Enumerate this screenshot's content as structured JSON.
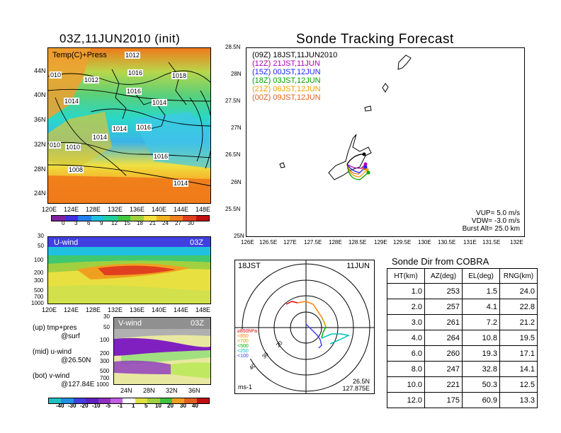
{
  "left_title": "03Z,11JUN2010 (init)",
  "main_title": "Sonde Tracking Forecast",
  "map_panel": {
    "label": "Temp(C)+Press",
    "lat_labels": [
      "44N",
      "40N",
      "36N",
      "32N",
      "28N",
      "24N"
    ],
    "lon_labels": [
      "120E",
      "124E",
      "128E",
      "132E",
      "136E",
      "140E",
      "144E",
      "148E"
    ],
    "isobar_labels": [
      "1012",
      "1016",
      "1018",
      "010",
      "1012",
      "1016",
      "1014",
      "1014",
      "1014",
      "1016",
      "1014",
      "010",
      "1010",
      "1016",
      "1008",
      "1014"
    ],
    "colorbar_ticks": [
      "0",
      "3",
      "6",
      "9",
      "12",
      "15",
      "18",
      "21",
      "24",
      "27",
      "30"
    ]
  },
  "u_panel": {
    "label": "U-wind",
    "time": "03Z",
    "pressure_labels": [
      "30",
      "50",
      "100",
      "200",
      "300",
      "500",
      "700",
      "1000"
    ],
    "lon_labels": [
      "120E",
      "124E",
      "128E",
      "132E",
      "136E",
      "140E",
      "144E",
      "148E"
    ]
  },
  "v_panel": {
    "label": "V-wind",
    "time": "03Z",
    "pressure_labels": [
      "30",
      "50",
      "100",
      "200",
      "300",
      "500",
      "700",
      "1000"
    ],
    "lat_labels": [
      "24N",
      "28N",
      "32N",
      "36N"
    ]
  },
  "legend_text": [
    "(up) tmp+pres",
    "@surf",
    "(mid) u-wind",
    "@26.50N",
    "(bot) v-wind",
    "@127.84E"
  ],
  "wind_colorbar_ticks": [
    "-40",
    "-30",
    "-20",
    "-10",
    "-5",
    "-1",
    "1",
    "5",
    "10",
    "20",
    "30",
    "40"
  ],
  "track_map": {
    "lat_labels": [
      "28.5N",
      "28N",
      "27.5N",
      "27N",
      "26.5N",
      "26N",
      "25.5N",
      "25N"
    ],
    "lon_labels": [
      "126E",
      "126.5E",
      "127E",
      "127.5E",
      "128E",
      "128.5E",
      "129E",
      "129.5E",
      "130E",
      "130.5E",
      "131E",
      "131.5E",
      "132E"
    ],
    "legend": [
      {
        "code": "(09Z)",
        "time": "18JST,11JUN2010",
        "color": "#000000"
      },
      {
        "code": "(12Z)",
        "time": "21JST,11JUN",
        "color": "#b000b0"
      },
      {
        "code": "(15Z)",
        "time": "00JST,12JUN",
        "color": "#2020ff"
      },
      {
        "code": "(18Z)",
        "time": "03JST,12JUN",
        "color": "#00a000"
      },
      {
        "code": "(21Z)",
        "time": "06JST,12JUN",
        "color": "#f0a000"
      },
      {
        "code": "(00Z)",
        "time": "09JST,12JUN",
        "color": "#e06020"
      }
    ],
    "info": [
      "VUP= 5.0 m/s",
      "VDW= -3.0 m/s",
      "Burst Alt= 25.0 km"
    ]
  },
  "polar": {
    "time_left": "18JST",
    "date_right": "11JUN",
    "ring_labels": [
      "40",
      "30",
      "20"
    ],
    "level_legend": [
      {
        "text": "≥850hPa",
        "color": "#e00000"
      },
      {
        "text": "<850",
        "color": "#ff8000"
      },
      {
        "text": "<700",
        "color": "#c8a000"
      },
      {
        "text": "<500",
        "color": "#00b000"
      },
      {
        "text": "<250",
        "color": "#00c0c0"
      },
      {
        "text": "<100",
        "color": "#4040ff"
      }
    ],
    "unit": "ms-1",
    "location_lat": "26.5N",
    "location_lon": "127.875E"
  },
  "chart_data": {
    "type": "table",
    "title": "Sonde Dir from COBRA",
    "columns": [
      "HT(km)",
      "AZ(deg)",
      "EL(deg)",
      "RNG(km)"
    ],
    "rows": [
      [
        "1.0",
        "253",
        "1.5",
        "24.0"
      ],
      [
        "2.0",
        "257",
        "4.1",
        "22.8"
      ],
      [
        "3.0",
        "261",
        "7.2",
        "21.2"
      ],
      [
        "4.0",
        "264",
        "10.8",
        "19.5"
      ],
      [
        "6.0",
        "260",
        "19.3",
        "17.1"
      ],
      [
        "8.0",
        "247",
        "32.8",
        "14.1"
      ],
      [
        "10.0",
        "221",
        "50.3",
        "12.5"
      ],
      [
        "12.0",
        "175",
        "60.9",
        "13.3"
      ]
    ]
  }
}
